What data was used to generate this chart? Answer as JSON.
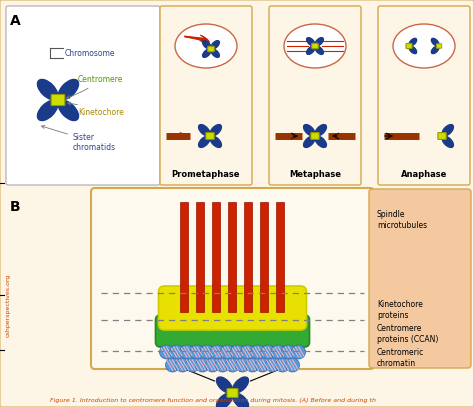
{
  "fig_width": 4.74,
  "fig_height": 4.07,
  "bg_color": "#ffffff",
  "panel_bg": "#fdf5e6",
  "panel_border": "#d4a84b",
  "chr_color": "#1a3a8a",
  "centromere_fc": "#ccdd00",
  "centromere_ec": "#999900",
  "spindle_color": "#cc2200",
  "yellow_layer": "#e8e000",
  "green_layer": "#33aa33",
  "bead_color": "#5599dd",
  "bead_stripe": "#ffaaaa",
  "sidebar_bg": "#f5c9a0",
  "sidebar_border": "#d4a84b",
  "caption_color": "#cc4400",
  "watermark_color": "#cc4400",
  "phase_labels": [
    "Prometaphase",
    "Metaphase",
    "Anaphase"
  ],
  "sidebar_text": [
    "Spindle\nmicrotubules",
    "Kinetochore\nproteins",
    "Centromere\nproteins (CCAN)",
    "Centromeric\nchromatin"
  ],
  "figure_caption": "Figure 1. Introduction to centromere function and organization during mitosis. (A) Before and during th",
  "watermark": "cshperspectives.org",
  "label_chr_color": "#334488",
  "label_cen_color": "#559900",
  "label_kin_color": "#aa8800"
}
